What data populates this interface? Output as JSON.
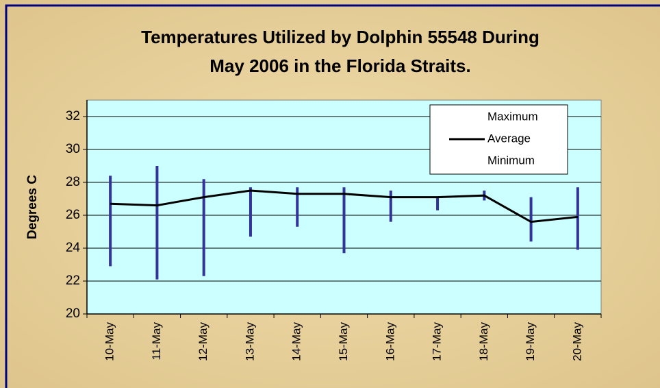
{
  "chart_data": {
    "type": "hilo",
    "title": [
      "Temperatures Utilized by Dolphin 55548 During",
      "May 2006 in the Florida Straits."
    ],
    "y_label": "Degrees C",
    "categories": [
      "10-May",
      "11-May",
      "12-May",
      "13-May",
      "14-May",
      "15-May",
      "16-May",
      "17-May",
      "18-May",
      "19-May",
      "20-May"
    ],
    "series": [
      {
        "name": "Maximum",
        "color": "#333399",
        "values": [
          28.4,
          29.0,
          28.2,
          27.7,
          27.7,
          27.7,
          27.5,
          27.1,
          27.5,
          27.1,
          27.7
        ]
      },
      {
        "name": "Average",
        "color": "#000000",
        "values": [
          26.7,
          26.6,
          27.1,
          27.5,
          27.3,
          27.3,
          27.1,
          27.1,
          27.2,
          25.6,
          25.9
        ]
      },
      {
        "name": "Minimum",
        "color": "#333399",
        "values": [
          22.9,
          22.1,
          22.3,
          24.7,
          25.3,
          23.7,
          25.6,
          26.3,
          26.9,
          24.4,
          23.9
        ]
      }
    ],
    "ylim": [
      20,
      33
    ],
    "yticks": [
      20,
      22,
      24,
      26,
      28,
      30,
      32
    ],
    "grid": true,
    "legend": "top-right"
  }
}
